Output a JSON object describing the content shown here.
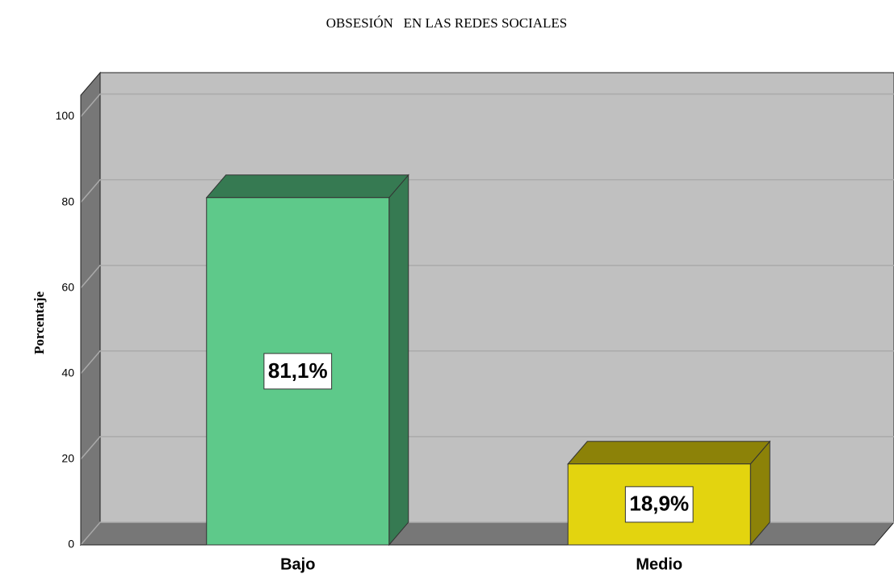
{
  "chart_data": {
    "type": "bar3d",
    "title": "OBSESIÓN   EN LAS REDES SOCIALES",
    "y_label": "Porcentaje",
    "categories": [
      "Bajo",
      "Medio"
    ],
    "values": [
      81.1,
      18.9
    ],
    "value_labels": [
      "81,1%",
      "18,9%"
    ],
    "colors": [
      "#5ec98a",
      "#e3d40f"
    ],
    "side_colors": [
      "#367a52",
      "#8c8208"
    ],
    "ylim": [
      0,
      105
    ],
    "yticks": [
      0,
      20,
      40,
      60,
      80,
      100
    ],
    "grid": true
  }
}
